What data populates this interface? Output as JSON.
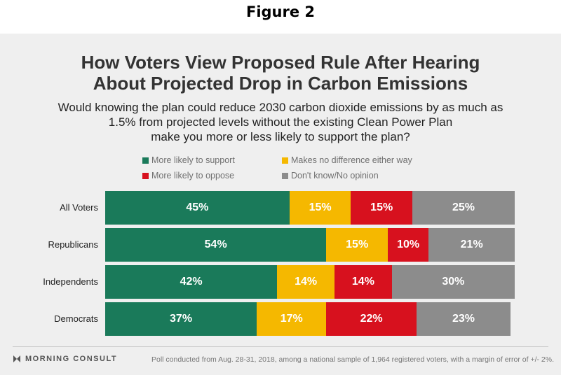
{
  "figure_label": "Figure 2",
  "chart_data": {
    "type": "bar",
    "orientation": "horizontal",
    "stacked": true,
    "title": "How Voters View Proposed Rule After Hearing About Projected Drop in Carbon Emissions",
    "title_lines": [
      "How Voters View Proposed Rule After Hearing",
      "About Projected Drop in Carbon Emissions"
    ],
    "subtitle": "Would knowing the plan could reduce 2030 carbon dioxide emissions by as much as 1.5% from projected levels without the existing Clean Power Plan make you more or less likely to support the plan?",
    "subtitle_lines": [
      "Would knowing the plan could reduce 2030 carbon dioxide emissions by as much as",
      "1.5% from projected levels without the existing Clean Power Plan",
      "make you more or less likely to support the plan?"
    ],
    "categories": [
      "All Voters",
      "Republicans",
      "Independents",
      "Democrats"
    ],
    "series": [
      {
        "name": "More likely to support",
        "color": "#1a7a5a",
        "values": [
          45,
          54,
          42,
          37
        ]
      },
      {
        "name": "Makes no difference either way",
        "color": "#f5b800",
        "values": [
          15,
          15,
          14,
          17
        ]
      },
      {
        "name": "More likely to oppose",
        "color": "#d7111e",
        "values": [
          15,
          10,
          14,
          22
        ]
      },
      {
        "name": "Don't know/No opinion",
        "color": "#8c8c8c",
        "values": [
          25,
          21,
          30,
          23
        ]
      }
    ],
    "value_suffix": "%",
    "xlim": [
      0,
      100
    ],
    "legend_position": "top",
    "grid": false
  },
  "footer": {
    "brand": "MORNING CONSULT",
    "note": "Poll conducted from Aug. 28-31, 2018, among a national sample of 1,964 registered voters, with a margin of error of +/- 2%."
  }
}
